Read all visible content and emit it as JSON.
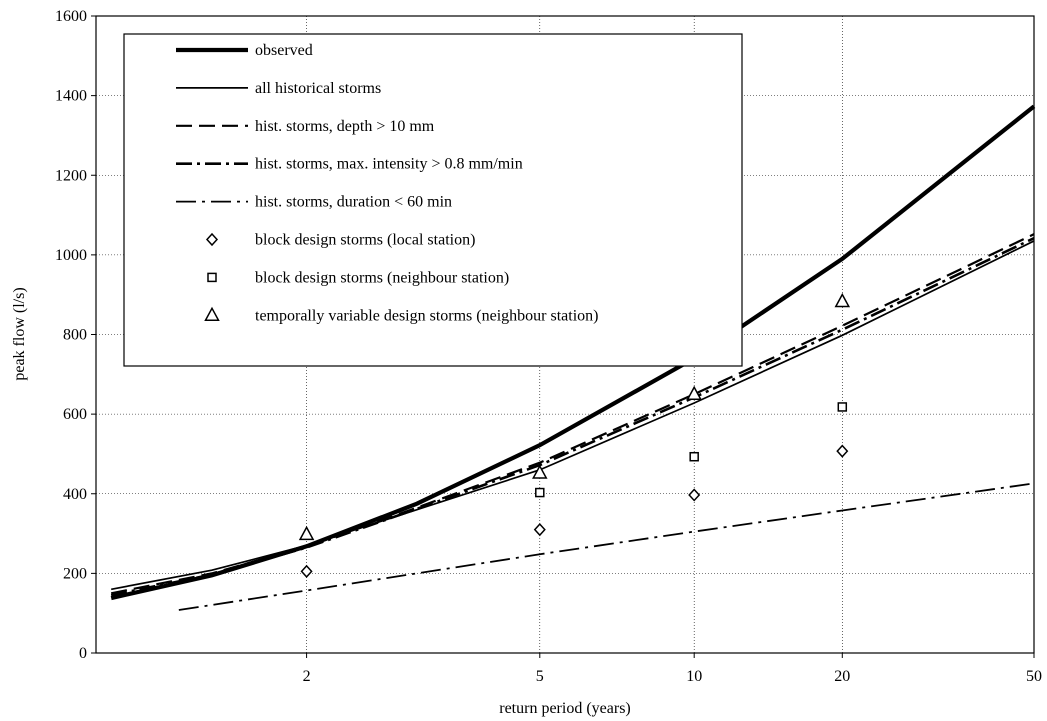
{
  "chart_data": {
    "type": "line",
    "title": "",
    "xlabel": "return period (years)",
    "ylabel": "peak flow (l/s)",
    "x_scale": "gumbel-reduced-variate",
    "xlim": [
      1.17,
      50
    ],
    "ylim": [
      0,
      1600
    ],
    "x_ticks": [
      2,
      5,
      10,
      20,
      50
    ],
    "y_ticks": [
      0,
      200,
      400,
      600,
      800,
      1000,
      1200,
      1400,
      1600
    ],
    "grid": true,
    "legend_position": "top-left",
    "series": [
      {
        "name": "observed",
        "kind": "line",
        "style": "thick",
        "x": [
          1.2,
          1.5,
          2,
          3,
          5,
          10,
          20,
          50
        ],
        "y": [
          138,
          195,
          268,
          375,
          522,
          740,
          990,
          1373
        ]
      },
      {
        "name": "all historical storms",
        "kind": "line",
        "style": "thin",
        "x": [
          1.2,
          1.5,
          2,
          3,
          5,
          10,
          20,
          50
        ],
        "y": [
          160,
          208,
          270,
          360,
          460,
          628,
          798,
          1035
        ]
      },
      {
        "name": "hist. storms, depth > 10 mm",
        "kind": "line",
        "style": "dashed",
        "x": [
          1.2,
          1.5,
          2,
          3,
          5,
          10,
          20,
          50
        ],
        "y": [
          150,
          200,
          267,
          365,
          478,
          650,
          822,
          1052
        ]
      },
      {
        "name": "hist. storms, max. intensity > 0.8 mm/min",
        "kind": "line",
        "style": "dash-dot",
        "x": [
          1.2,
          1.5,
          2,
          3,
          5,
          10,
          20,
          50
        ],
        "y": [
          145,
          197,
          265,
          362,
          472,
          642,
          812,
          1042
        ]
      },
      {
        "name": "hist. storms, duration < 60 min",
        "kind": "line",
        "style": "long-dash-dot",
        "x": [
          1.38,
          2,
          3,
          5,
          10,
          20,
          50
        ],
        "y": [
          108,
          157,
          200,
          248,
          305,
          358,
          426
        ]
      },
      {
        "name": "block design storms (local station)",
        "kind": "points",
        "marker": "diamond",
        "x": [
          2,
          5,
          10,
          20
        ],
        "y": [
          205,
          310,
          397,
          507
        ]
      },
      {
        "name": "block design storms (neighbour station)",
        "kind": "points",
        "marker": "square",
        "x": [
          5,
          10,
          20
        ],
        "y": [
          403,
          493,
          618
        ]
      },
      {
        "name": "temporally variable design storms (neighbour station)",
        "kind": "points",
        "marker": "triangle",
        "x": [
          2,
          5,
          10,
          20
        ],
        "y": [
          298,
          452,
          650,
          883
        ]
      }
    ]
  }
}
